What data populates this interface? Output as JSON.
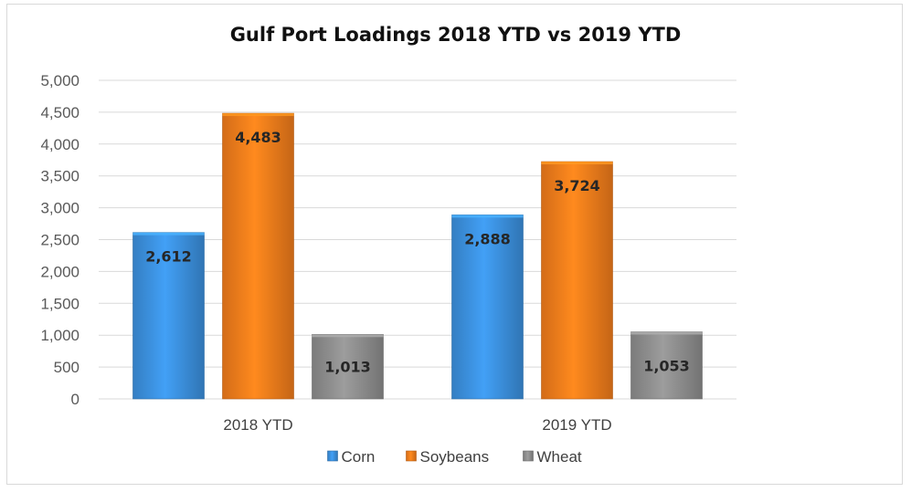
{
  "chart_data": {
    "type": "bar",
    "title": "Gulf Port Loadings 2018 YTD vs 2019 YTD",
    "categories": [
      "2018 YTD",
      "2019 YTD"
    ],
    "series": [
      {
        "name": "Corn",
        "values": [
          2612,
          2888
        ],
        "labels": [
          "2,612",
          "2,888"
        ],
        "color": "#3b8fdc"
      },
      {
        "name": "Soybeans",
        "values": [
          4483,
          3724
        ],
        "labels": [
          "4,483",
          "3,724"
        ],
        "color": "#f07b1b"
      },
      {
        "name": "Wheat",
        "values": [
          1013,
          1053
        ],
        "labels": [
          "1,013",
          "1,053"
        ],
        "color": "#8c8c8c"
      }
    ],
    "yticks": [
      0,
      500,
      1000,
      1500,
      2000,
      2500,
      3000,
      3500,
      4000,
      4500,
      5000
    ],
    "ytick_labels": [
      "0",
      "500",
      "1,000",
      "1,500",
      "2,000",
      "2,500",
      "3,000",
      "3,500",
      "4,000",
      "4,500",
      "5,000"
    ],
    "ylim": [
      0,
      5000
    ],
    "grid": true,
    "legend_position": "bottom"
  }
}
